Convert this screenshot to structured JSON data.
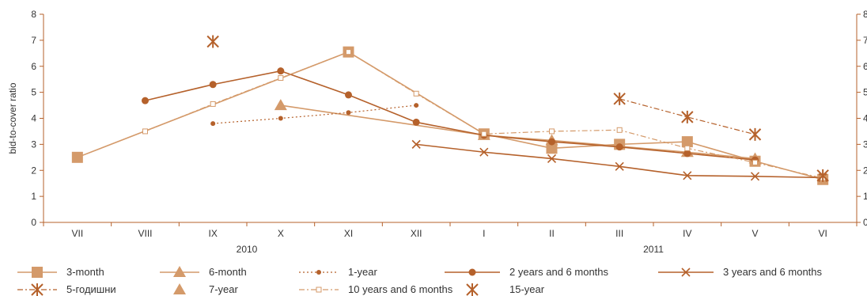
{
  "chart_data": {
    "type": "line",
    "ylabel": "bid-to-cover ratio",
    "ylim": [
      0,
      8
    ],
    "yticks": [
      0,
      1,
      2,
      3,
      4,
      5,
      6,
      7,
      8
    ],
    "right_yticks": [
      0,
      1,
      2,
      3,
      4,
      5,
      6,
      7,
      8
    ],
    "categories": [
      "VII",
      "VIII",
      "IX",
      "X",
      "XI",
      "XII",
      "I",
      "II",
      "III",
      "IV",
      "V",
      "VI"
    ],
    "year_labels": [
      {
        "label": "2010",
        "center_index": 2.5
      },
      {
        "label": "2011",
        "center_index": 8.5
      }
    ],
    "grid": false,
    "legend_position": "bottom",
    "series": [
      {
        "name": "3-month",
        "color": "#D49A6A",
        "line_style": "solid",
        "marker": "square-large",
        "values": [
          2.5,
          null,
          null,
          null,
          6.55,
          null,
          3.4,
          2.85,
          3.0,
          3.1,
          2.35,
          1.65
        ]
      },
      {
        "name": "6-month",
        "color": "#D49A6A",
        "line_style": "solid",
        "marker": "triangle",
        "values": [
          null,
          null,
          null,
          4.5,
          null,
          null,
          3.35,
          3.15,
          null,
          2.7,
          2.45,
          null
        ]
      },
      {
        "name": "1-year",
        "color": "#B5612B",
        "line_style": "dotted",
        "marker": "circle-small",
        "values": [
          null,
          null,
          3.8,
          4.0,
          4.22,
          4.5,
          null,
          null,
          null,
          null,
          null,
          null
        ]
      },
      {
        "name": "2 years and 6 months",
        "color": "#B5612B",
        "line_style": "solid",
        "marker": "circle",
        "values": [
          null,
          4.68,
          5.3,
          5.82,
          4.9,
          3.85,
          3.35,
          3.1,
          2.9,
          2.65,
          2.4,
          null
        ]
      },
      {
        "name": "3 years and 6 months",
        "color": "#B5612B",
        "line_style": "solid",
        "marker": "x",
        "values": [
          null,
          null,
          null,
          null,
          null,
          3.0,
          2.7,
          2.45,
          2.15,
          1.8,
          1.77,
          1.72
        ]
      },
      {
        "name": "5-годишни",
        "color": "#B5612B",
        "line_style": "dashdot",
        "marker": "asterisk",
        "values": [
          null,
          null,
          null,
          null,
          null,
          null,
          null,
          null,
          4.75,
          4.05,
          3.38,
          null
        ]
      },
      {
        "name": "7-year",
        "color": "#D49A6A",
        "line_style": "none",
        "marker": "triangle",
        "values": [
          null,
          null,
          null,
          null,
          null,
          null,
          null,
          null,
          null,
          null,
          null,
          null
        ]
      },
      {
        "name": "10 years and 6 months",
        "color": "#D49A6A",
        "line_style": "dashdot",
        "marker": "square-small",
        "values": [
          null,
          3.5,
          4.55,
          5.55,
          6.55,
          4.95,
          3.4,
          3.5,
          3.55,
          2.85,
          2.3,
          1.7
        ]
      },
      {
        "name": "15-year",
        "color": "#B5612B",
        "line_style": "none",
        "marker": "asterisk",
        "values": [
          null,
          null,
          6.95,
          null,
          null,
          null,
          null,
          null,
          null,
          null,
          null,
          1.8
        ]
      }
    ],
    "colors": {
      "axis": "#B5612B",
      "text": "#333333"
    }
  }
}
